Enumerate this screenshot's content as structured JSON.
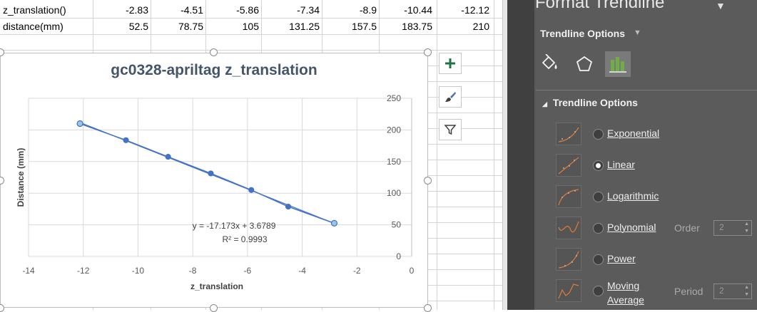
{
  "sheet": {
    "row1": {
      "label": "z_translation()",
      "values": [
        "-2.83",
        "-4.51",
        "-5.86",
        "-7.34",
        "-8.9",
        "-10.44",
        "-12.12"
      ]
    },
    "row2": {
      "label": "distance(mm)",
      "values": [
        "52.5",
        "78.75",
        "105",
        "131.25",
        "157.5",
        "183.75",
        "210"
      ]
    }
  },
  "chart": {
    "title": "gc0328-apriltag z_translation",
    "xlabel": "z_translation",
    "ylabel": "Distance (mm)",
    "equation": "y = -17.173x + 3.6789",
    "r_squared": "R² = 0.9993"
  },
  "chart_data": {
    "type": "scatter",
    "title": "gc0328-apriltag z_translation",
    "xlabel": "z_translation",
    "ylabel": "Distance (mm)",
    "xlim": [
      -14,
      0
    ],
    "ylim": [
      0,
      250
    ],
    "x_ticks": [
      "-14",
      "-12",
      "-10",
      "-8",
      "-6",
      "-4",
      "-2",
      "0"
    ],
    "y_ticks": [
      "0",
      "50",
      "100",
      "150",
      "200",
      "250"
    ],
    "grid": true,
    "series": [
      {
        "x": [
          -2.83,
          -4.51,
          -5.86,
          -7.34,
          -8.9,
          -10.44,
          -12.12
        ],
        "y": [
          52.5,
          78.75,
          105,
          131.25,
          157.5,
          183.75,
          210
        ]
      }
    ],
    "trendline": {
      "type": "linear",
      "slope": -17.173,
      "intercept": 3.6789,
      "r_squared": 0.9993
    },
    "colors": {
      "series": "#4472c4",
      "trendline": "#4472c4",
      "grid": "#d9d9d9"
    }
  },
  "pane": {
    "title": "Format Trendline",
    "subtitle": "Trendline Options",
    "section": "Trendline Options",
    "options": [
      {
        "label": "Exponential",
        "selected": false
      },
      {
        "label": "Linear",
        "selected": true
      },
      {
        "label": "Logarithmic",
        "selected": false
      },
      {
        "label": "Polynomial",
        "selected": false
      },
      {
        "label": "Power",
        "selected": false
      },
      {
        "label": "Moving Average",
        "selected": false
      }
    ],
    "order_label": "Order",
    "order_value": "2",
    "period_label": "Period",
    "period_value": "2"
  }
}
